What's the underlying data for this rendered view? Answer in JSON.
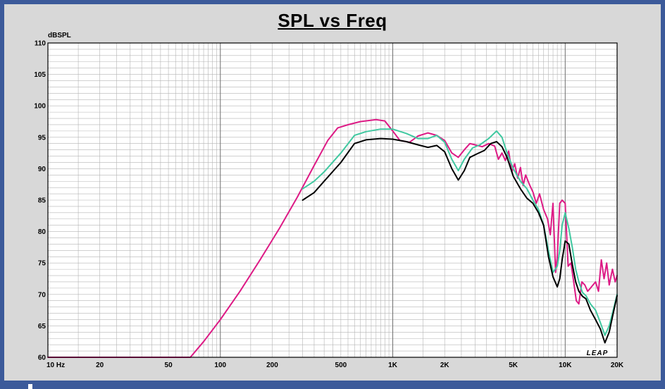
{
  "chart_data": {
    "type": "line",
    "title": "SPL vs Freq",
    "ylabel": "dBSPL",
    "xlabel": "",
    "x_scale": "log",
    "xlim": [
      10,
      20000
    ],
    "ylim": [
      60,
      110
    ],
    "grid": true,
    "x_tick_values": [
      10,
      20,
      50,
      100,
      200,
      500,
      1000,
      2000,
      5000,
      10000,
      20000
    ],
    "x_tick_labels": [
      "10 Hz",
      "20",
      "50",
      "100",
      "200",
      "500",
      "1K",
      "2K",
      "5K",
      "10K",
      "20K"
    ],
    "y_ticks": [
      60,
      65,
      70,
      75,
      80,
      85,
      90,
      95,
      100,
      105,
      110
    ],
    "logo": "LEAP",
    "series": [
      {
        "color": "#dd1a85",
        "x": [
          10,
          20,
          50,
          67,
          80,
          100,
          130,
          170,
          220,
          280,
          350,
          420,
          480,
          550,
          650,
          800,
          900,
          1000,
          1100,
          1250,
          1400,
          1600,
          1800,
          2000,
          2200,
          2400,
          2600,
          2800,
          3000,
          3300,
          3600,
          3900,
          4100,
          4300,
          4500,
          4700,
          4900,
          5100,
          5300,
          5500,
          5700,
          5900,
          6200,
          6500,
          6800,
          7100,
          7500,
          7900,
          8200,
          8500,
          8800,
          9000,
          9300,
          9600,
          10000,
          10400,
          10800,
          11200,
          11600,
          12000,
          12500,
          13000,
          13500,
          14000,
          14500,
          15000,
          15600,
          16200,
          16800,
          17400,
          18000,
          18800,
          19500,
          20000
        ],
        "y": [
          60,
          60,
          60,
          60,
          62.5,
          66,
          70.5,
          75.5,
          80.5,
          85.5,
          90.5,
          94.5,
          96.5,
          97,
          97.5,
          97.8,
          97.6,
          96,
          94.5,
          94.2,
          95.2,
          95.7,
          95.3,
          94.5,
          92.5,
          91.8,
          93,
          94,
          93.8,
          93.5,
          94,
          93.6,
          91.5,
          92.5,
          91.3,
          92.8,
          89.5,
          90.8,
          88.5,
          90.2,
          87.3,
          89,
          87.5,
          86.3,
          84.5,
          86,
          83.5,
          82,
          79.5,
          84.5,
          73.5,
          76,
          84.5,
          85,
          84.5,
          74.5,
          75,
          72,
          69,
          68.5,
          72,
          71.5,
          70.5,
          71,
          71.5,
          72,
          70.5,
          75.5,
          72.5,
          75,
          71.5,
          74,
          72,
          73
        ]
      },
      {
        "color": "#40c8a0",
        "x": [
          300,
          350,
          400,
          500,
          600,
          700,
          850,
          1000,
          1200,
          1400,
          1600,
          1800,
          2000,
          2200,
          2400,
          2600,
          2900,
          3200,
          3600,
          4000,
          4300,
          4600,
          5000,
          5500,
          6000,
          6500,
          7000,
          7500,
          8000,
          8500,
          9000,
          9300,
          9600,
          10000,
          10500,
          11000,
          11500,
          12000,
          12600,
          13200,
          14000,
          15000,
          16000,
          17000,
          18000,
          19000,
          20000
        ],
        "y": [
          86.8,
          88,
          89.5,
          92.5,
          95.3,
          95.9,
          96.3,
          96.3,
          95.6,
          94.8,
          94.8,
          95.3,
          94.2,
          91.5,
          89.7,
          91.5,
          93.3,
          93.8,
          94.8,
          96,
          95,
          92.5,
          90,
          88,
          86.8,
          85,
          83.5,
          81,
          77,
          73.5,
          74.5,
          77,
          81,
          83,
          80.5,
          77.5,
          74,
          72,
          70.3,
          69.8,
          68.5,
          67.5,
          65.5,
          63.5,
          65,
          67.5,
          70
        ]
      },
      {
        "color": "#000000",
        "x": [
          300,
          350,
          400,
          500,
          600,
          700,
          850,
          1000,
          1200,
          1400,
          1600,
          1800,
          2000,
          2200,
          2400,
          2600,
          2800,
          3100,
          3400,
          3700,
          4000,
          4300,
          4600,
          5000,
          5500,
          6000,
          6500,
          7000,
          7500,
          8000,
          8500,
          9000,
          9300,
          9600,
          10000,
          10500,
          11000,
          11500,
          12000,
          12600,
          13200,
          14000,
          15000,
          16000,
          17000,
          18000,
          19000,
          20000
        ],
        "y": [
          85,
          86.2,
          88,
          91,
          94,
          94.6,
          94.8,
          94.7,
          94.3,
          93.8,
          93.4,
          93.7,
          92.7,
          90,
          88.2,
          89.7,
          91.8,
          92.4,
          92.9,
          94,
          94.3,
          93.5,
          91.8,
          88.8,
          86.8,
          85.3,
          84.5,
          83,
          81,
          76,
          72.8,
          71.2,
          72.5,
          75.5,
          78.5,
          78,
          74.8,
          72,
          70.5,
          69.7,
          69.3,
          67.5,
          66,
          64.5,
          62.3,
          64,
          67,
          69.8
        ]
      }
    ]
  }
}
